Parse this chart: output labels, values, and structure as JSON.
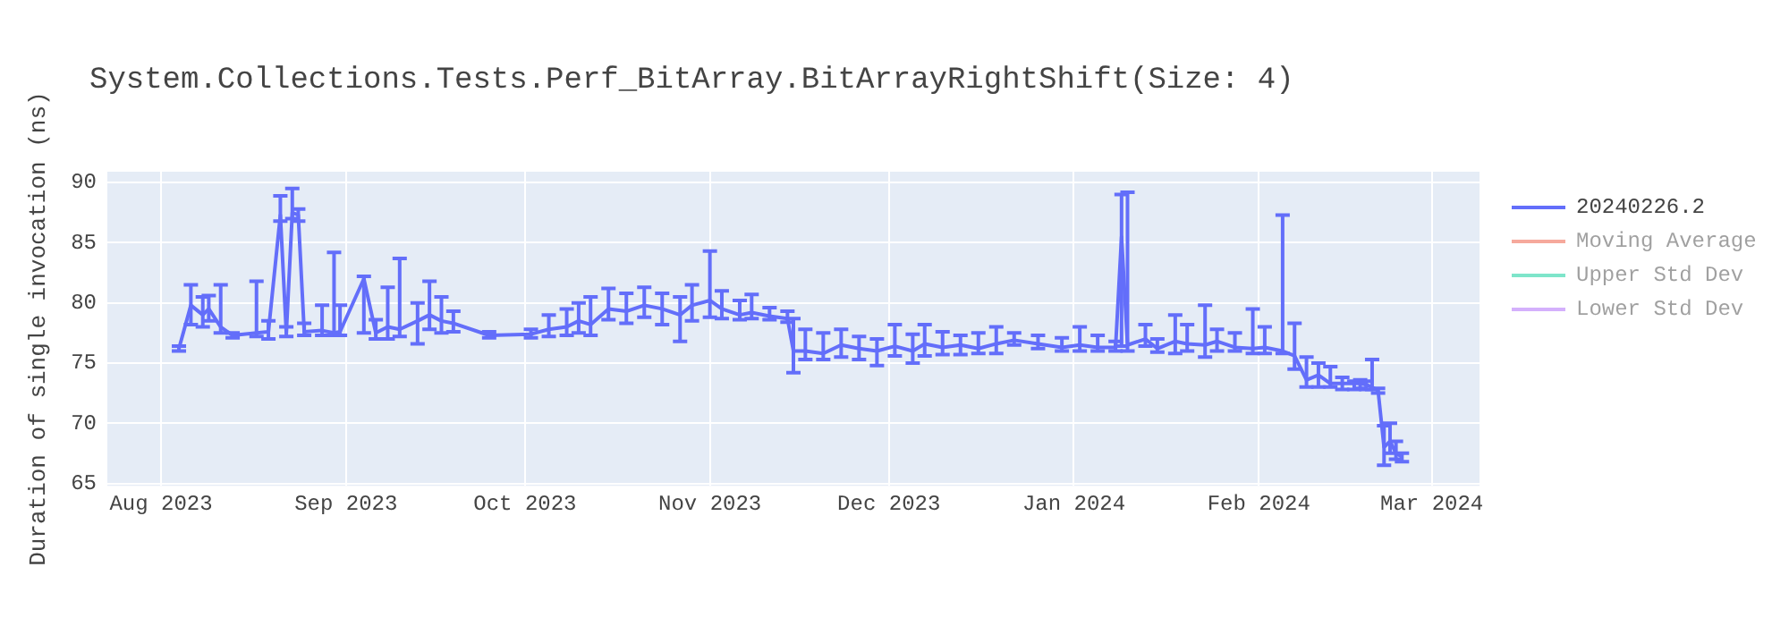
{
  "chart_data": {
    "type": "line",
    "title": "System.Collections.Tests.Perf_BitArray.BitArrayRightShift(Size: 4)",
    "ylabel": "Duration of single invocation (ns)",
    "xlim": [
      "2023-07-23",
      "2024-03-09"
    ],
    "xticks": [
      {
        "value": "2023-08-01",
        "label": "Aug 2023"
      },
      {
        "value": "2023-09-01",
        "label": "Sep 2023"
      },
      {
        "value": "2023-10-01",
        "label": "Oct 2023"
      },
      {
        "value": "2023-11-01",
        "label": "Nov 2023"
      },
      {
        "value": "2023-12-01",
        "label": "Dec 2023"
      },
      {
        "value": "2024-01-01",
        "label": "Jan 2024"
      },
      {
        "value": "2024-02-01",
        "label": "Feb 2024"
      },
      {
        "value": "2024-03-01",
        "label": "Mar 2024"
      }
    ],
    "ylim": [
      64.8,
      90.9
    ],
    "yticks": [
      65,
      70,
      75,
      80,
      85,
      90
    ],
    "grid": true,
    "legend": "right",
    "marker": "none",
    "line_style": "solid",
    "series": [
      {
        "name": "20240226.2",
        "color": "#636efa",
        "x": [
          "2023-08-04",
          "2023-08-06",
          "2023-08-08",
          "2023-08-09",
          "2023-08-11",
          "2023-08-13",
          "2023-08-17",
          "2023-08-19",
          "2023-08-21",
          "2023-08-22",
          "2023-08-23",
          "2023-08-24",
          "2023-08-25",
          "2023-08-28",
          "2023-08-30",
          "2023-08-31",
          "2023-09-04",
          "2023-09-06",
          "2023-09-08",
          "2023-09-10",
          "2023-09-13",
          "2023-09-15",
          "2023-09-17",
          "2023-09-19",
          "2023-09-25",
          "2023-10-02",
          "2023-10-05",
          "2023-10-08",
          "2023-10-10",
          "2023-10-12",
          "2023-10-15",
          "2023-10-18",
          "2023-10-21",
          "2023-10-24",
          "2023-10-27",
          "2023-10-29",
          "2023-11-01",
          "2023-11-03",
          "2023-11-06",
          "2023-11-08",
          "2023-11-11",
          "2023-11-14",
          "2023-11-15",
          "2023-11-17",
          "2023-11-20",
          "2023-11-23",
          "2023-11-26",
          "2023-11-29",
          "2023-12-02",
          "2023-12-05",
          "2023-12-07",
          "2023-12-10",
          "2023-12-13",
          "2023-12-16",
          "2023-12-19",
          "2023-12-22",
          "2023-12-26",
          "2023-12-30",
          "2024-01-02",
          "2024-01-05",
          "2024-01-08",
          "2024-01-09",
          "2024-01-10",
          "2024-01-13",
          "2024-01-15",
          "2024-01-18",
          "2024-01-20",
          "2024-01-23",
          "2024-01-25",
          "2024-01-28",
          "2024-01-31",
          "2024-02-02",
          "2024-02-05",
          "2024-02-07",
          "2024-02-09",
          "2024-02-11",
          "2024-02-13",
          "2024-02-15",
          "2024-02-17",
          "2024-02-18",
          "2024-02-19",
          "2024-02-20",
          "2024-02-21",
          "2024-02-22",
          "2024-02-23",
          "2024-02-24",
          "2024-02-25"
        ],
        "values": [
          76.2,
          79.8,
          79.0,
          79.5,
          78.0,
          77.3,
          77.5,
          77.6,
          87.3,
          77.5,
          87.5,
          87.3,
          77.6,
          77.7,
          77.5,
          77.6,
          82.0,
          77.5,
          78.0,
          77.8,
          78.5,
          79.0,
          78.5,
          78.3,
          77.3,
          77.4,
          77.8,
          78.0,
          78.5,
          78.2,
          79.5,
          79.3,
          79.8,
          79.5,
          79.0,
          79.8,
          80.2,
          79.5,
          79.0,
          79.2,
          78.9,
          78.7,
          76.0,
          76.0,
          75.8,
          76.5,
          76.2,
          76.0,
          76.4,
          76.0,
          76.6,
          76.3,
          76.5,
          76.2,
          76.6,
          76.9,
          76.6,
          76.3,
          76.5,
          76.3,
          76.3,
          85.5,
          76.5,
          77.0,
          76.2,
          76.8,
          76.6,
          76.5,
          76.8,
          76.3,
          76.2,
          76.3,
          76.0,
          75.6,
          73.6,
          74.0,
          73.3,
          73.3,
          73.3,
          73.3,
          73.2,
          73.0,
          72.7,
          68.0,
          68.5,
          67.5,
          67.2
        ],
        "errors": [
          [
            76.0,
            76.4
          ],
          [
            78.2,
            81.5
          ],
          [
            78.0,
            80.5
          ],
          [
            78.5,
            80.6
          ],
          [
            77.5,
            81.5
          ],
          [
            77.1,
            77.5
          ],
          [
            77.2,
            81.8
          ],
          [
            77.0,
            78.5
          ],
          [
            86.8,
            88.9
          ],
          [
            77.2,
            78.0
          ],
          [
            87.0,
            89.5
          ],
          [
            86.8,
            87.8
          ],
          [
            77.3,
            78.3
          ],
          [
            77.3,
            79.8
          ],
          [
            77.3,
            84.2
          ],
          [
            77.3,
            79.8
          ],
          [
            77.5,
            82.2
          ],
          [
            77.0,
            78.6
          ],
          [
            77.0,
            81.3
          ],
          [
            77.2,
            83.7
          ],
          [
            76.6,
            80.0
          ],
          [
            77.8,
            81.8
          ],
          [
            77.5,
            80.5
          ],
          [
            77.6,
            79.3
          ],
          [
            77.1,
            77.6
          ],
          [
            77.1,
            77.8
          ],
          [
            77.2,
            79.0
          ],
          [
            77.3,
            79.5
          ],
          [
            77.5,
            80.0
          ],
          [
            77.3,
            80.5
          ],
          [
            78.6,
            81.2
          ],
          [
            78.3,
            80.8
          ],
          [
            78.8,
            81.3
          ],
          [
            78.2,
            80.8
          ],
          [
            76.8,
            80.5
          ],
          [
            78.5,
            81.5
          ],
          [
            78.8,
            84.3
          ],
          [
            78.7,
            81.0
          ],
          [
            78.6,
            80.2
          ],
          [
            78.7,
            80.7
          ],
          [
            78.6,
            79.6
          ],
          [
            78.4,
            79.3
          ],
          [
            74.2,
            78.7
          ],
          [
            75.3,
            77.8
          ],
          [
            75.3,
            77.5
          ],
          [
            75.5,
            77.8
          ],
          [
            75.3,
            77.2
          ],
          [
            74.8,
            77.0
          ],
          [
            75.6,
            78.2
          ],
          [
            75.0,
            77.4
          ],
          [
            75.6,
            78.2
          ],
          [
            75.7,
            77.6
          ],
          [
            75.7,
            77.3
          ],
          [
            75.8,
            77.5
          ],
          [
            75.8,
            78.0
          ],
          [
            76.5,
            77.5
          ],
          [
            76.2,
            77.3
          ],
          [
            76.0,
            77.1
          ],
          [
            76.0,
            78.0
          ],
          [
            76.0,
            77.3
          ],
          [
            76.0,
            76.8
          ],
          [
            76.4,
            89.0
          ],
          [
            76.0,
            89.2
          ],
          [
            76.4,
            78.2
          ],
          [
            75.9,
            77.0
          ],
          [
            75.8,
            79.0
          ],
          [
            76.0,
            78.2
          ],
          [
            75.5,
            79.8
          ],
          [
            76.0,
            77.8
          ],
          [
            76.0,
            77.5
          ],
          [
            75.8,
            79.5
          ],
          [
            75.8,
            78.0
          ],
          [
            75.8,
            87.3
          ],
          [
            74.5,
            78.3
          ],
          [
            73.0,
            75.5
          ],
          [
            73.0,
            75.0
          ],
          [
            73.0,
            74.7
          ],
          [
            72.8,
            73.8
          ],
          [
            72.8,
            73.5
          ],
          [
            72.9,
            73.6
          ],
          [
            72.8,
            73.5
          ],
          [
            72.8,
            75.3
          ],
          [
            72.5,
            72.9
          ],
          [
            66.5,
            69.8
          ],
          [
            67.5,
            70.0
          ],
          [
            67.0,
            68.5
          ],
          [
            66.8,
            67.5
          ]
        ]
      },
      {
        "name": "Moving Average",
        "color": "#ef553b"
      },
      {
        "name": "Upper Std Dev",
        "color": "#00cc96"
      },
      {
        "name": "Lower Std Dev",
        "color": "#ab63fa"
      }
    ]
  }
}
